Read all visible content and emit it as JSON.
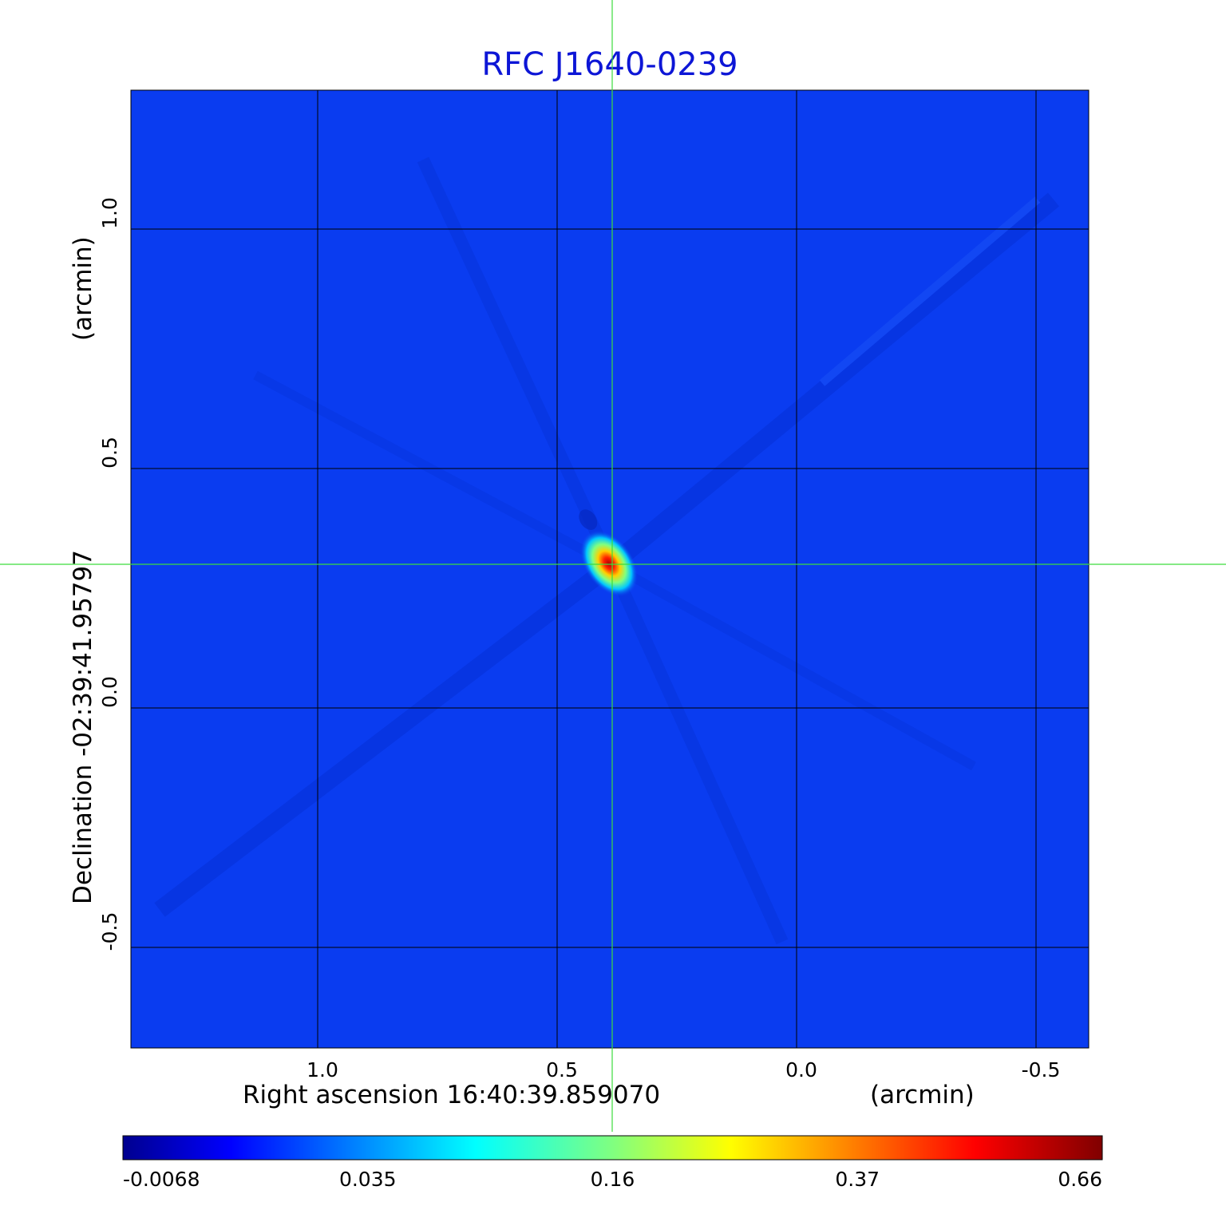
{
  "chart_data": {
    "type": "heatmap",
    "title": "RFC J1640-0239",
    "xlabel": "Right ascension  16:40:39.859070",
    "xunit": "(arcmin)",
    "ylabel": "Declination  -02:39:41.95797",
    "yunit": "(arcmin)",
    "x_range": [
      1.39,
      -0.61
    ],
    "y_range": [
      -0.71,
      1.29
    ],
    "x_ticks": [
      {
        "value": 1.0,
        "label": "1.0"
      },
      {
        "value": 0.5,
        "label": "0.5"
      },
      {
        "value": 0.0,
        "label": "0.0"
      },
      {
        "value": -0.5,
        "label": "-0.5"
      }
    ],
    "y_ticks": [
      {
        "value": 1.0,
        "label": "1.0"
      },
      {
        "value": 0.5,
        "label": "0.5"
      },
      {
        "value": 0.0,
        "label": "0.0"
      },
      {
        "value": -0.5,
        "label": "-0.5"
      }
    ],
    "grid": true,
    "crosshair": {
      "x": 0.385,
      "y": 0.3
    },
    "peak": {
      "x": 0.39,
      "y": 0.3,
      "value": 0.66
    },
    "colorbar": {
      "orientation": "horizontal",
      "position": "bottom",
      "colormap": "jet",
      "ticks": [
        {
          "value": -0.0068,
          "label": "-0.0068"
        },
        {
          "value": 0.035,
          "label": "0.035"
        },
        {
          "value": 0.16,
          "label": "0.16"
        },
        {
          "value": 0.37,
          "label": "0.37"
        },
        {
          "value": 0.66,
          "label": "0.66"
        }
      ]
    },
    "colors": {
      "title": "#0d16d6",
      "background_field": "#0a3cf0",
      "crosshair": "#3cdc3c",
      "grid": "#000000"
    }
  }
}
